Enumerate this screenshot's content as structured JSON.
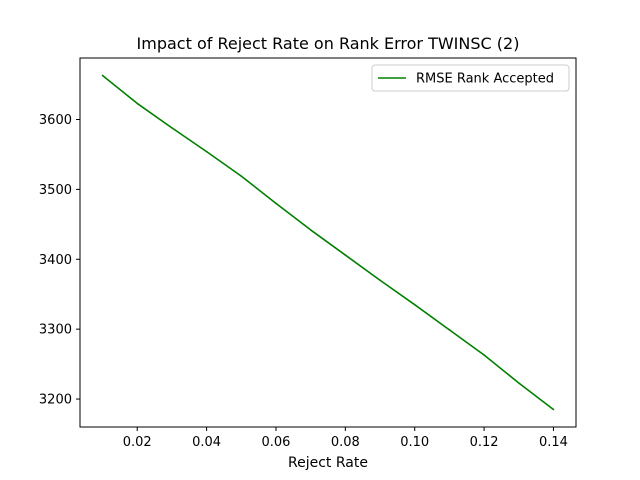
{
  "chart_data": {
    "type": "line",
    "title": "Impact of Reject Rate on Rank Error TWINSC (2)",
    "xlabel": "Reject Rate",
    "ylabel": "",
    "xlim": [
      0.0035,
      0.1465
    ],
    "ylim": [
      3160,
      3688
    ],
    "xticks": [
      0.02,
      0.04,
      0.06,
      0.08,
      0.1,
      0.12,
      0.14
    ],
    "xtick_labels": [
      "0.02",
      "0.04",
      "0.06",
      "0.08",
      "0.10",
      "0.12",
      "0.14"
    ],
    "yticks": [
      3200,
      3300,
      3400,
      3500,
      3600
    ],
    "ytick_labels": [
      "3200",
      "3300",
      "3400",
      "3500",
      "3600"
    ],
    "grid": false,
    "legend_position": "top-right",
    "series": [
      {
        "name": "RMSE Rank Accepted",
        "color": "#008000",
        "x": [
          0.01,
          0.02,
          0.03,
          0.04,
          0.05,
          0.06,
          0.07,
          0.08,
          0.09,
          0.1,
          0.11,
          0.12,
          0.13,
          0.14
        ],
        "y": [
          3663,
          3623,
          3588,
          3554,
          3519,
          3480,
          3442,
          3406,
          3370,
          3335,
          3299,
          3263,
          3223,
          3185
        ]
      }
    ]
  }
}
